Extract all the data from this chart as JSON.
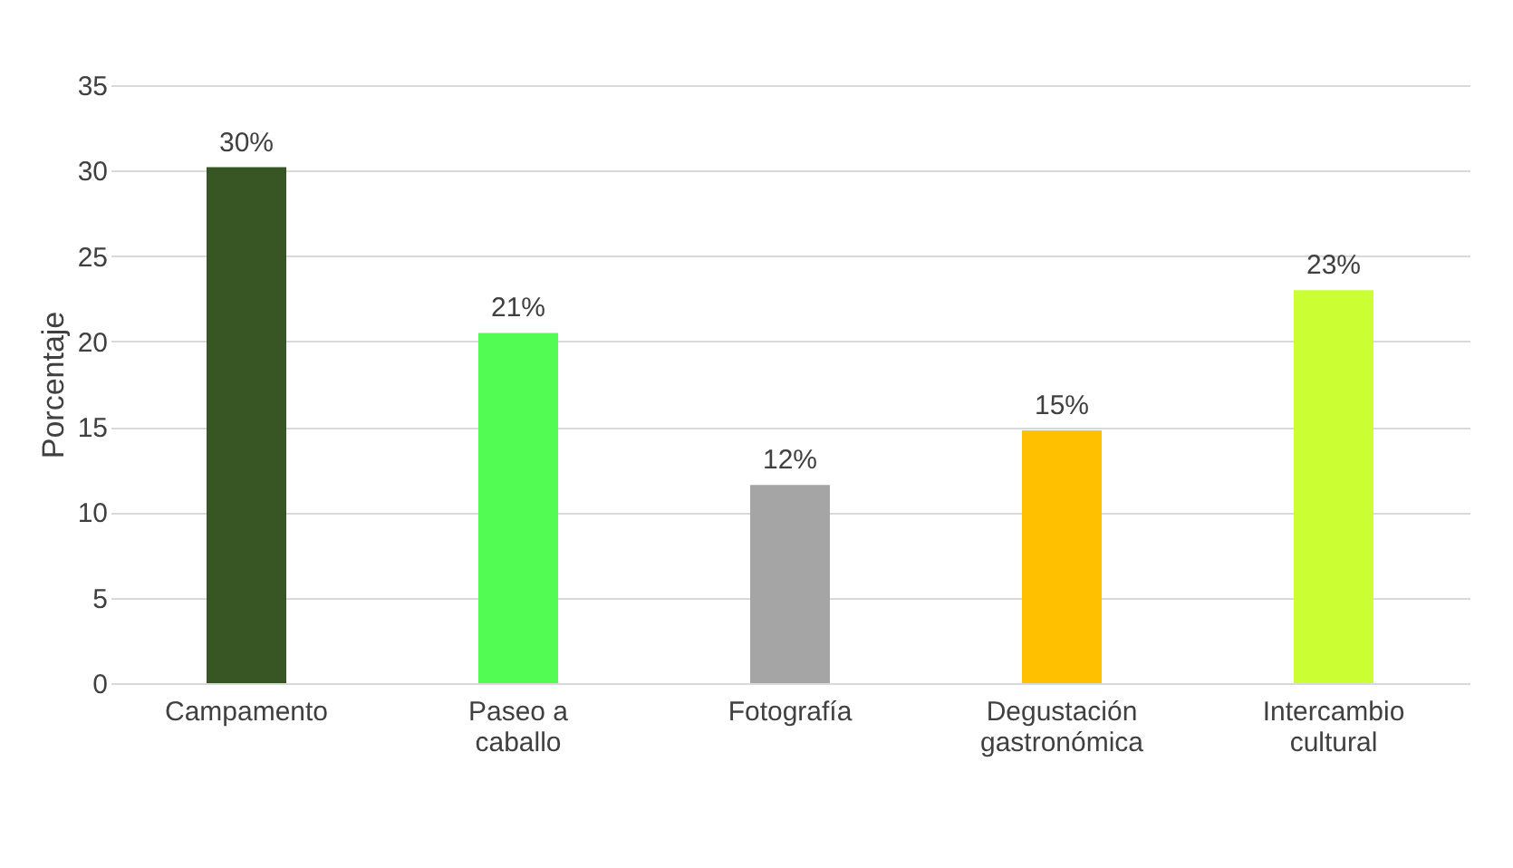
{
  "chart_data": {
    "type": "bar",
    "ylabel": "Porcentaje",
    "categories": [
      "Campamento",
      "Paseo a caballo",
      "Fotografía",
      "Degustación gastronómica",
      "Intercambio cultural"
    ],
    "values": [
      30.2,
      20.5,
      11.6,
      14.8,
      23.0
    ],
    "colors": [
      "#375623",
      "#52fc52",
      "#a5a5a5",
      "#ffc000",
      "#ccff33"
    ],
    "value_labels": [
      "30%",
      "21%",
      "12%",
      "15%",
      "23%"
    ],
    "ylim": [
      0,
      35
    ],
    "yticks": [
      0,
      5,
      10,
      15,
      20,
      25,
      30,
      35
    ],
    "grid": "y"
  }
}
